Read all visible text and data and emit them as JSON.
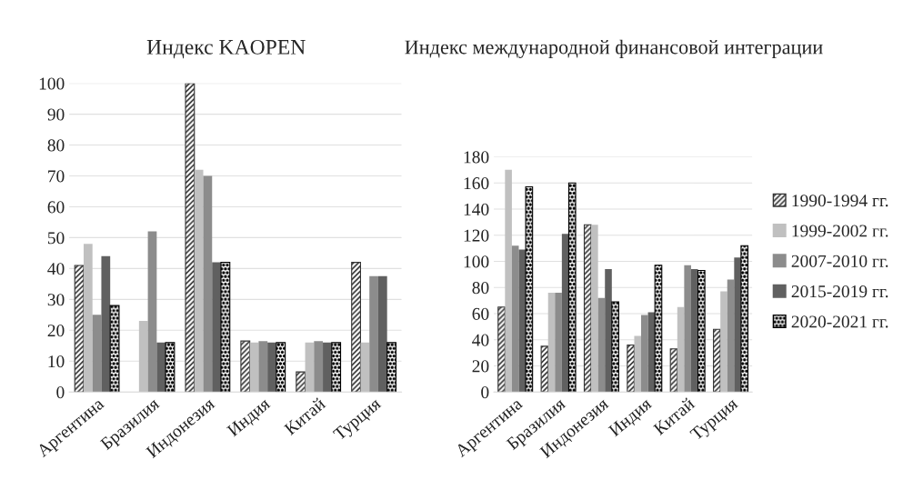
{
  "chart_data": [
    {
      "type": "bar",
      "title": "Индекс KAOPEN",
      "categories": [
        "Аргентина",
        "Бразилия",
        "Индонезия",
        "Индия",
        "Китай",
        "Турция"
      ],
      "ylim": [
        0,
        100
      ],
      "yticks": [
        0,
        10,
        20,
        30,
        40,
        50,
        60,
        70,
        80,
        90,
        100
      ],
      "grid": "y",
      "series": [
        {
          "color": "#333333",
          "values": [
            41,
            null,
            100,
            16.5,
            6.5,
            42
          ]
        },
        {
          "color": "#c0c0c0",
          "values": [
            48,
            23,
            72,
            16,
            16,
            16
          ]
        },
        {
          "color": "#8c8c8c",
          "values": [
            25,
            52,
            70,
            16.5,
            16.5,
            37.5
          ]
        },
        {
          "color": "#606060",
          "values": [
            44,
            16,
            42,
            16,
            16,
            37.5
          ]
        },
        {
          "color": "#000000",
          "values": [
            28,
            16,
            42,
            16,
            16,
            16
          ]
        }
      ]
    },
    {
      "type": "bar",
      "title": "Индекс международной финансовой интеграции",
      "categories": [
        "Аргентина",
        "Бразилия",
        "Индонезия",
        "Индия",
        "Китай",
        "Турция"
      ],
      "ylim": [
        0,
        180
      ],
      "yticks": [
        0,
        20,
        40,
        60,
        80,
        100,
        120,
        140,
        160,
        180
      ],
      "grid": "y",
      "legend": "right",
      "series": [
        {
          "name": "1990-1994 гг.",
          "color": "#333333",
          "values": [
            65,
            35,
            128,
            36,
            33,
            48
          ]
        },
        {
          "name": "1999-2002 гг.",
          "color": "#c0c0c0",
          "values": [
            170,
            76,
            128,
            43,
            65,
            77
          ]
        },
        {
          "name": "2007-2010 гг.",
          "color": "#8c8c8c",
          "values": [
            112,
            76,
            72,
            59,
            97,
            86
          ]
        },
        {
          "name": "2015-2019 гг.",
          "color": "#606060",
          "values": [
            109,
            121,
            94,
            61,
            94,
            103
          ]
        },
        {
          "name": "2020-2021 гг.",
          "color": "#000000",
          "values": [
            157,
            160,
            69,
            97,
            93,
            112
          ]
        }
      ]
    }
  ]
}
